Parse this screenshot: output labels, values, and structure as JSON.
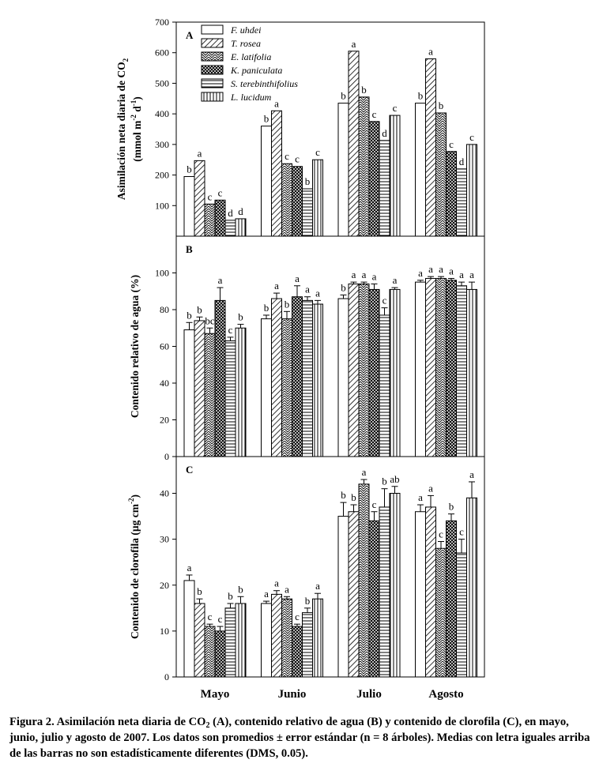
{
  "figure": {
    "categories": [
      "Mayo",
      "Junio",
      "Julio",
      "Agosto"
    ],
    "legend": [
      "F. uhdei",
      "T. rosea",
      "E. latifolia",
      "K. paniculata",
      "S. terebinthifolius",
      "L. lucidum"
    ]
  },
  "chart_data": [
    {
      "type": "bar",
      "panel": "A",
      "ylabel_line1": "Asimilación neta diaria de CO",
      "ylabel_sub": "2",
      "ylabel_line2_parts": [
        "(mmol m",
        "-2",
        " d",
        "-1",
        ")"
      ],
      "ylim": [
        0,
        700
      ],
      "yticks": [
        100,
        200,
        300,
        400,
        500,
        600,
        700
      ],
      "categories": [
        "Mayo",
        "Junio",
        "Julio",
        "Agosto"
      ],
      "legend_position": "top-left",
      "series": [
        {
          "name": "F. uhdei",
          "values": [
            195,
            360,
            435,
            435
          ],
          "errors": [
            0,
            0,
            0,
            0
          ],
          "letters": [
            "b",
            "b",
            "b",
            "b"
          ]
        },
        {
          "name": "T. rosea",
          "values": [
            247,
            410,
            605,
            580
          ],
          "errors": [
            0,
            0,
            0,
            0
          ],
          "letters": [
            "a",
            "a",
            "a",
            "a"
          ]
        },
        {
          "name": "E. latifolia",
          "values": [
            105,
            237,
            455,
            403
          ],
          "errors": [
            0,
            0,
            0,
            0
          ],
          "letters": [
            "c",
            "c",
            "b",
            "b"
          ]
        },
        {
          "name": "K. paniculata",
          "values": [
            118,
            228,
            375,
            277
          ],
          "errors": [
            0,
            0,
            0,
            0
          ],
          "letters": [
            "c",
            "c",
            "c",
            "c"
          ]
        },
        {
          "name": "S. terebinthifolius",
          "values": [
            52,
            155,
            313,
            220
          ],
          "errors": [
            0,
            0,
            0,
            0
          ],
          "letters": [
            "d",
            "b",
            "d",
            "d"
          ]
        },
        {
          "name": "L. lucidum",
          "values": [
            57,
            250,
            395,
            300
          ],
          "errors": [
            0,
            0,
            0,
            0
          ],
          "letters": [
            "d",
            "c",
            "c",
            "c"
          ]
        }
      ]
    },
    {
      "type": "bar",
      "panel": "B",
      "ylabel": "Contenido relativo de agua (%)",
      "ylim": [
        0,
        120
      ],
      "yticks": [
        0,
        20,
        40,
        60,
        80,
        100
      ],
      "categories": [
        "Mayo",
        "Junio",
        "Julio",
        "Agosto"
      ],
      "series": [
        {
          "name": "F. uhdei",
          "values": [
            69,
            75,
            86,
            95
          ],
          "errors": [
            4,
            2,
            2,
            1
          ],
          "letters": [
            "b",
            "b",
            "b",
            "a"
          ]
        },
        {
          "name": "T. rosea",
          "values": [
            74,
            86,
            94,
            97
          ],
          "errors": [
            2,
            3,
            1,
            1
          ],
          "letters": [
            "b",
            "a",
            "a",
            "a"
          ]
        },
        {
          "name": "E. latifolia",
          "values": [
            67,
            75,
            94,
            97
          ],
          "errors": [
            3,
            4,
            1,
            1
          ],
          "letters": [
            "bc",
            "b",
            "a",
            "a"
          ]
        },
        {
          "name": "K. paniculata",
          "values": [
            85,
            87,
            91,
            96
          ],
          "errors": [
            7,
            6,
            3,
            1
          ],
          "letters": [
            "a",
            "a",
            "a",
            "a"
          ]
        },
        {
          "name": "S. terebinthifolius",
          "values": [
            63,
            85,
            77,
            93
          ],
          "errors": [
            2,
            2,
            4,
            2
          ],
          "letters": [
            "c",
            "a",
            "c",
            "a"
          ]
        },
        {
          "name": "L. lucidum",
          "values": [
            70,
            83,
            91,
            91
          ],
          "errors": [
            2,
            2,
            1,
            4
          ],
          "letters": [
            "b",
            "a",
            "a",
            "a"
          ]
        }
      ]
    },
    {
      "type": "bar",
      "panel": "C",
      "ylabel_parts": [
        "Contenido de clorofila (µg cm",
        "-2",
        ")"
      ],
      "ylim": [
        0,
        48
      ],
      "yticks": [
        0,
        10,
        20,
        30,
        40
      ],
      "xlabel": "",
      "categories": [
        "Mayo",
        "Junio",
        "Julio",
        "Agosto"
      ],
      "series": [
        {
          "name": "F. uhdei",
          "values": [
            21,
            16,
            35,
            36
          ],
          "errors": [
            1.2,
            0.5,
            3,
            1.5
          ],
          "letters": [
            "a",
            "a",
            "b",
            "a"
          ]
        },
        {
          "name": "T. rosea",
          "values": [
            16,
            18,
            36,
            37
          ],
          "errors": [
            1,
            0.8,
            1.5,
            2.5
          ],
          "letters": [
            "b",
            "a",
            "b",
            "a"
          ]
        },
        {
          "name": "E. latifolia",
          "values": [
            11,
            17,
            42,
            28
          ],
          "errors": [
            0.5,
            0.5,
            1,
            1.5
          ],
          "letters": [
            "c",
            "a",
            "a",
            "c"
          ]
        },
        {
          "name": "K. paniculata",
          "values": [
            10,
            11,
            34,
            34
          ],
          "errors": [
            1,
            0.5,
            2,
            1.5
          ],
          "letters": [
            "c",
            "c",
            "c",
            "b"
          ]
        },
        {
          "name": "S. terebinthifolius",
          "values": [
            15,
            14,
            37,
            27
          ],
          "errors": [
            1,
            1,
            4,
            3
          ],
          "letters": [
            "b",
            "b",
            "b",
            "c"
          ]
        },
        {
          "name": "L. lucidum",
          "values": [
            16,
            17,
            40,
            39
          ],
          "errors": [
            1.5,
            1.2,
            1.5,
            3.5
          ],
          "letters": [
            "b",
            "a",
            "ab",
            "a"
          ]
        }
      ]
    }
  ],
  "caption": {
    "part1": "Figura 2. Asimilación neta diaria de CO",
    "sub": "2",
    "part2": " (A), contenido relativo de agua (B) y contenido de clorofila (C), en mayo, junio, julio y agosto de 2007. Los datos son promedios ± error estándar (n = 8 árboles). Medias con letra iguales arriba de las barras no son estadísticamente diferentes (DMS, 0.05)."
  },
  "colors": {
    "ink": "#000000",
    "paper": "#ffffff"
  }
}
